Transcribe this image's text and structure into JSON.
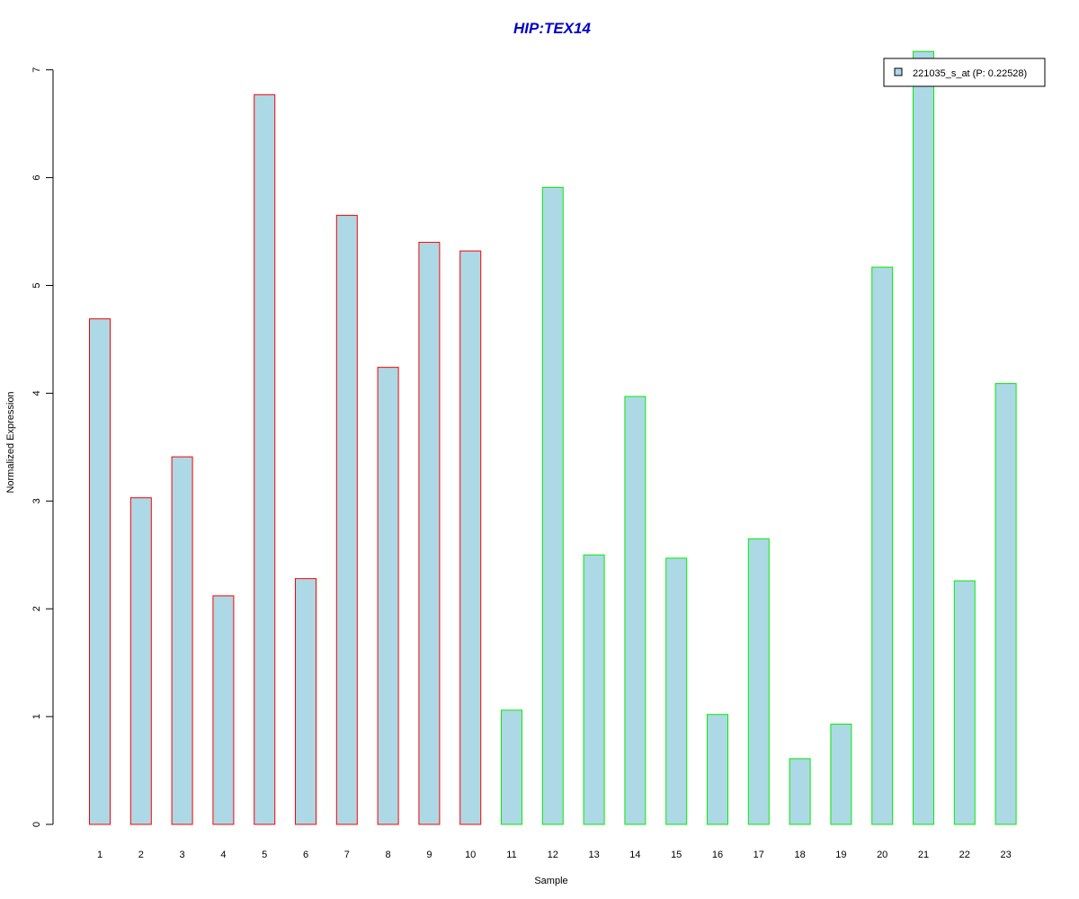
{
  "chart_data": {
    "type": "bar",
    "title": "HIP:TEX14",
    "xlabel": "Sample",
    "ylabel": "Normalized Expression",
    "categories": [
      "1",
      "2",
      "3",
      "4",
      "5",
      "6",
      "7",
      "8",
      "9",
      "10",
      "11",
      "12",
      "13",
      "14",
      "15",
      "16",
      "17",
      "18",
      "19",
      "20",
      "21",
      "22",
      "23"
    ],
    "series": [
      {
        "name": "221035_s_at (P: 0.22528)",
        "values": [
          4.69,
          3.03,
          3.41,
          2.12,
          6.77,
          2.28,
          5.65,
          4.24,
          5.4,
          5.32,
          1.06,
          5.91,
          2.5,
          3.97,
          2.47,
          1.02,
          2.65,
          0.61,
          0.93,
          5.17,
          7.17,
          2.26,
          4.09
        ]
      }
    ],
    "bar_outline_colors": [
      "#ff0000",
      "#ff0000",
      "#ff0000",
      "#ff0000",
      "#ff0000",
      "#ff0000",
      "#ff0000",
      "#ff0000",
      "#ff0000",
      "#ff0000",
      "#00ee00",
      "#00ee00",
      "#00ee00",
      "#00ee00",
      "#00ee00",
      "#00ee00",
      "#00ee00",
      "#00ee00",
      "#00ee00",
      "#00ee00",
      "#00ee00",
      "#00ee00",
      "#00ee00"
    ],
    "y_ticks": [
      0,
      1,
      2,
      3,
      4,
      5,
      6,
      7
    ],
    "ylim": [
      0,
      7
    ],
    "grid": false,
    "legend_position": "top-right",
    "colors": {
      "bar_fill": "#add8e6",
      "title": "#0000cc",
      "axis": "#000000",
      "legend_border": "#000000"
    }
  }
}
